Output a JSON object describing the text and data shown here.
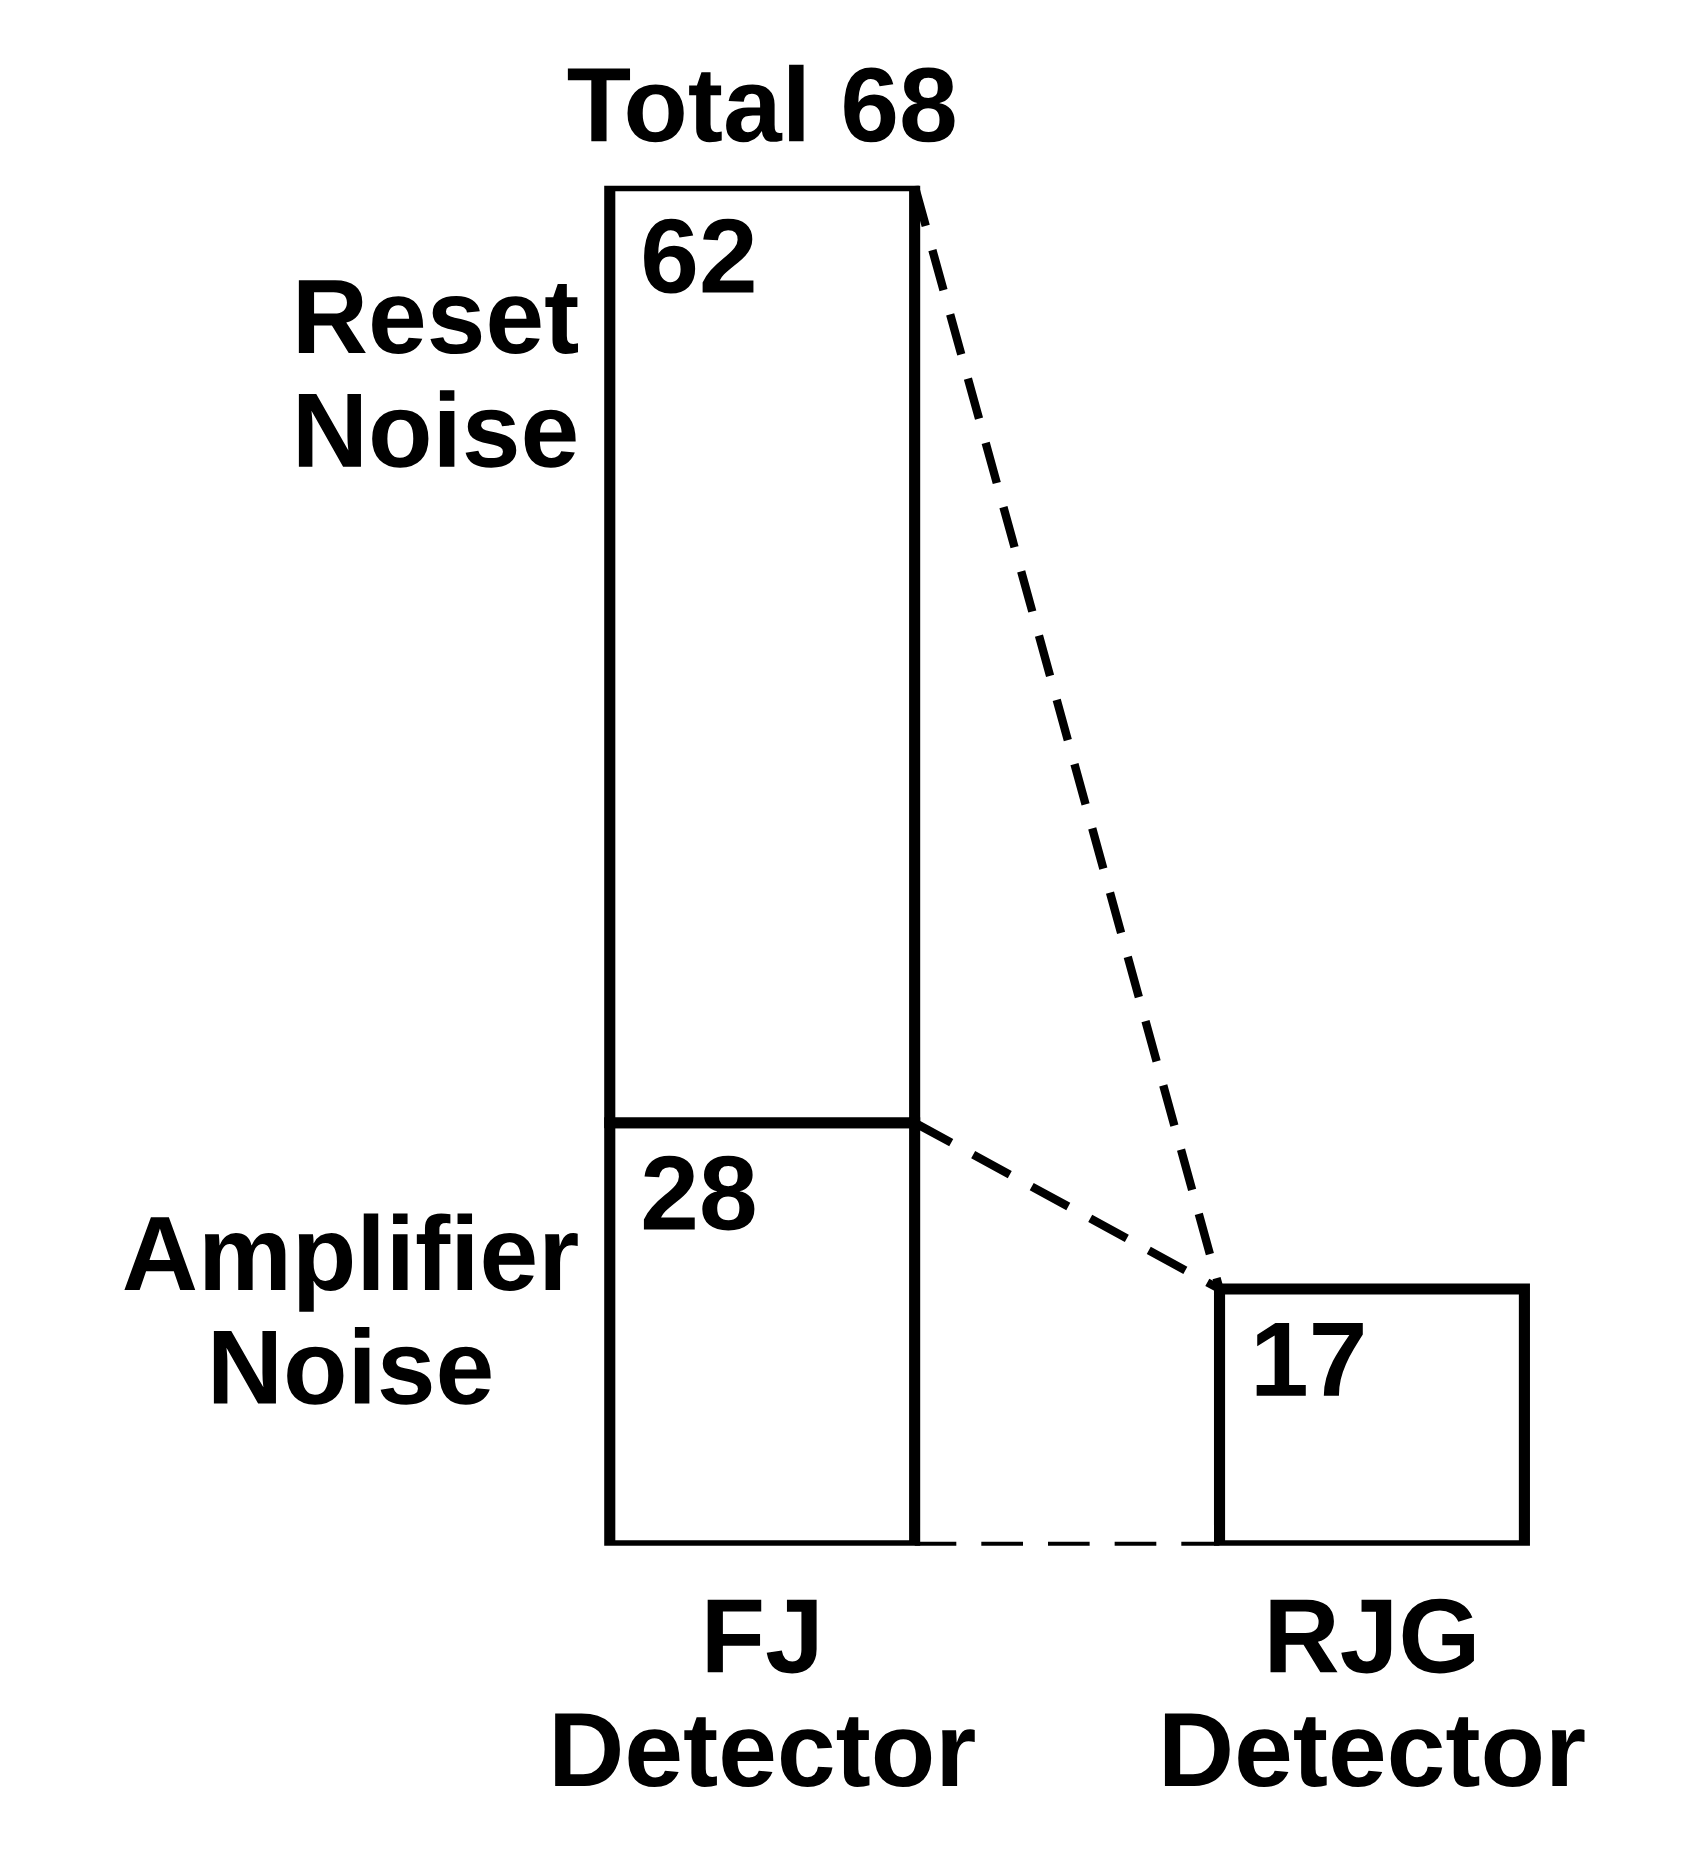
{
  "chart_data": {
    "type": "bar",
    "stacked": true,
    "categories": [
      "FJ\nDetector",
      "RJG\nDetector"
    ],
    "series": [
      {
        "name": "Amplifier\nNoise",
        "color": "#ffffff",
        "values": [
          28,
          17
        ]
      },
      {
        "name": "Reset\nNoise",
        "color": "#ffffff",
        "values": [
          62,
          null
        ]
      }
    ],
    "data_labels": true,
    "totals": [
      "Total 68",
      null
    ],
    "legend": false,
    "grid": false,
    "tick_labels": "x"
  }
}
